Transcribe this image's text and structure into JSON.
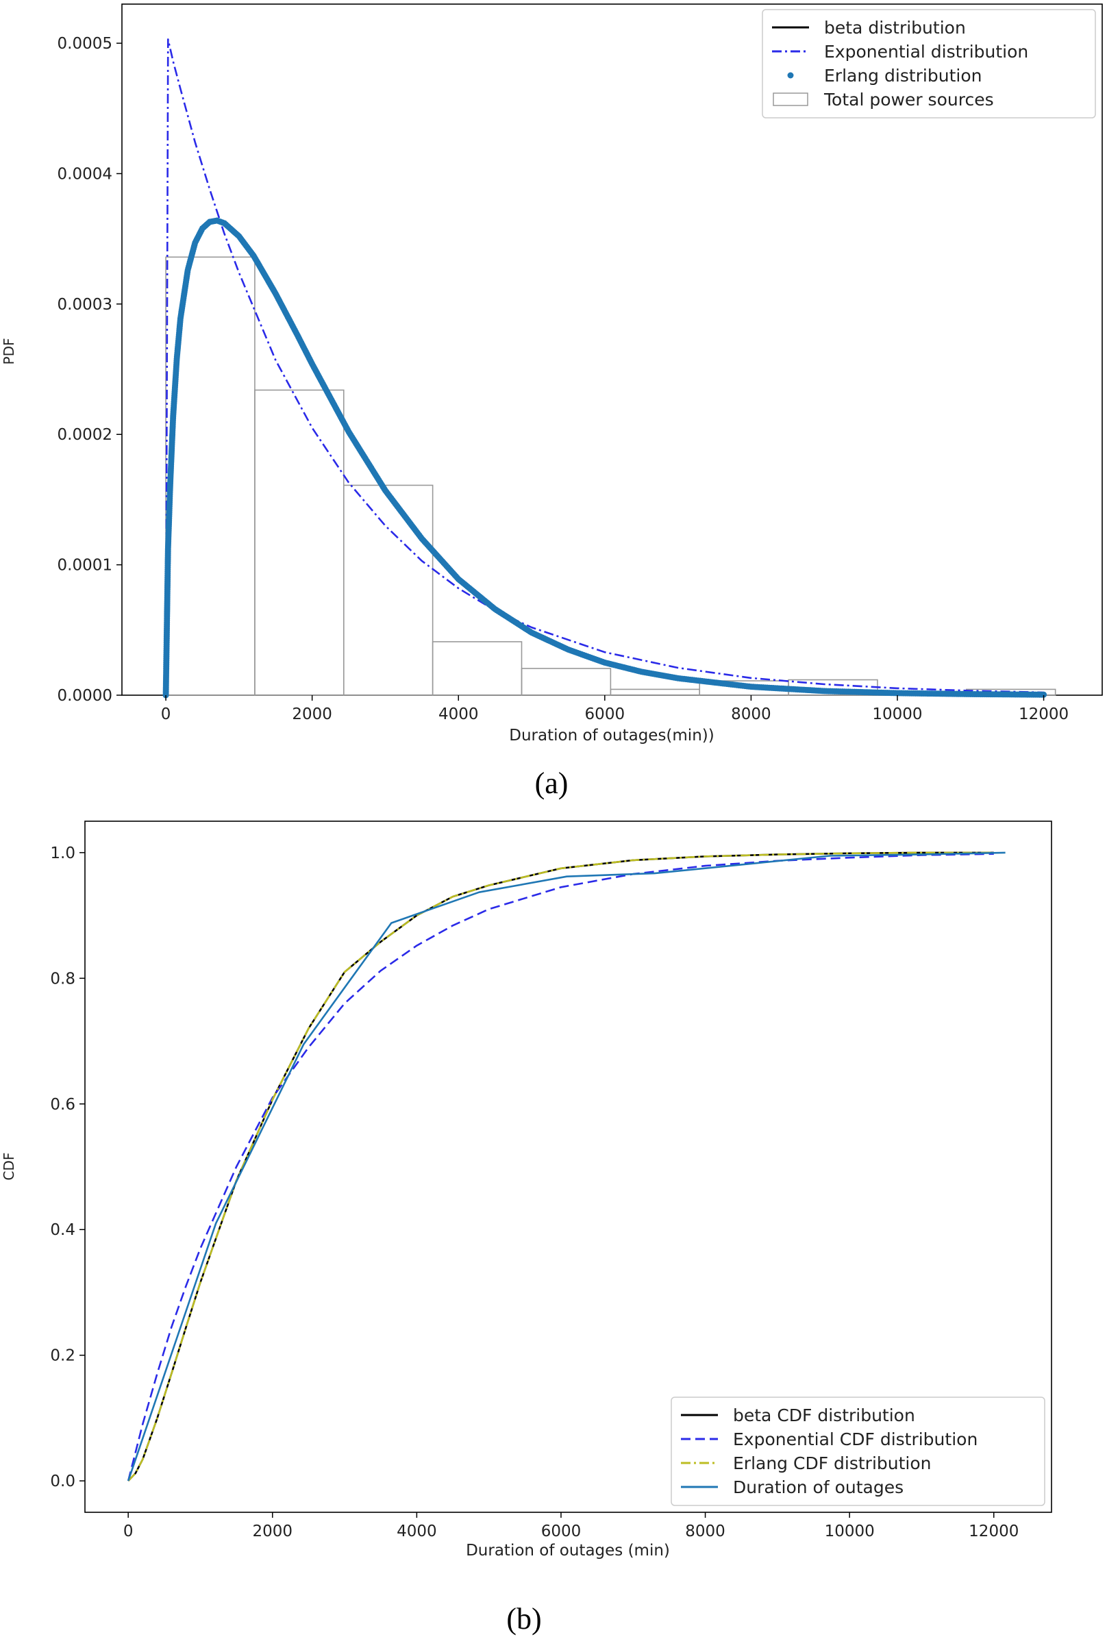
{
  "chart_data": [
    {
      "type": "line",
      "panel_label": "(a)",
      "xlabel": "Duration of outages(min))",
      "ylabel": "PDF",
      "xlim": [
        -600,
        12800
      ],
      "ylim": [
        0,
        0.00053
      ],
      "xticks": [
        0,
        2000,
        4000,
        6000,
        8000,
        10000,
        12000
      ],
      "xtick_labels": [
        "0",
        "2000",
        "4000",
        "6000",
        "8000",
        "10000",
        "12000"
      ],
      "yticks": [
        0,
        0.0001,
        0.0002,
        0.0003,
        0.0004,
        0.0005
      ],
      "ytick_labels": [
        "0.0000",
        "0.0001",
        "0.0002",
        "0.0003",
        "0.0004",
        "0.0005"
      ],
      "grid": false,
      "legend_position": "top-right",
      "histogram": {
        "name": "Total power sources",
        "color": "#999999",
        "bin_edges": [
          0,
          1216,
          2432,
          3648,
          4864,
          6080,
          7296,
          8512,
          9728,
          10944,
          12160
        ],
        "values": [
          0.000336,
          0.000234,
          0.000161,
          4.1e-05,
          2.05e-05,
          4.5e-06,
          1.1e-05,
          1.18e-05,
          2.8e-06,
          4.5e-06
        ]
      },
      "series": [
        {
          "name": "beta distribution",
          "style": "solid",
          "color": "#000000",
          "x": [
            0,
            30,
            60,
            100,
            150,
            200,
            300,
            400,
            500,
            600,
            700,
            800,
            1000,
            1200,
            1500,
            1800,
            2000,
            2500,
            3000,
            3500,
            4000,
            4500,
            5000,
            5500,
            6000,
            6500,
            7000,
            8000,
            9000,
            10000,
            11000,
            12000
          ],
          "y": [
            0,
            0.000112,
            0.000162,
            0.000214,
            0.000258,
            0.000289,
            0.000326,
            0.000347,
            0.000358,
            0.000363,
            0.000364,
            0.000362,
            0.000352,
            0.000337,
            0.000308,
            0.000276,
            0.000254,
            0.000202,
            0.000157,
            0.00012,
            8.9e-05,
            6.6e-05,
            4.8e-05,
            3.5e-05,
            2.5e-05,
            1.8e-05,
            1.3e-05,
            6.5e-06,
            3.2e-06,
            1.6e-06,
            8e-07,
            4e-07
          ]
        },
        {
          "name": "Exponential distribution",
          "style": "dashdot",
          "color": "#2a2ae8",
          "x": [
            0,
            30,
            100,
            200,
            400,
            600,
            800,
            1000,
            1500,
            2000,
            2500,
            3000,
            3500,
            4000,
            4500,
            5000,
            6000,
            7000,
            8000,
            9000,
            10000,
            11000,
            12000
          ],
          "y": [
            0,
            0.000503,
            0.000486,
            0.000465,
            0.000424,
            0.000388,
            0.000354,
            0.000324,
            0.000257,
            0.000205,
            0.000163,
            0.00013,
            0.000103,
            8.2e-05,
            6.5e-05,
            5.2e-05,
            3.3e-05,
            2.1e-05,
            1.32e-05,
            8.4e-06,
            5.3e-06,
            3.4e-06,
            2.1e-06
          ]
        },
        {
          "name": "Erlang distribution",
          "style": "dots",
          "color": "#1f77b4",
          "x": [
            0,
            30,
            60,
            100,
            150,
            200,
            300,
            400,
            500,
            600,
            700,
            800,
            1000,
            1200,
            1500,
            1800,
            2000,
            2500,
            3000,
            3500,
            4000,
            4500,
            5000,
            5500,
            6000,
            6500,
            7000,
            8000,
            9000,
            10000,
            11000,
            12000
          ],
          "y": [
            0,
            0.000112,
            0.000162,
            0.000214,
            0.000258,
            0.000289,
            0.000326,
            0.000347,
            0.000358,
            0.000363,
            0.000364,
            0.000362,
            0.000352,
            0.000337,
            0.000308,
            0.000276,
            0.000254,
            0.000202,
            0.000157,
            0.00012,
            8.9e-05,
            6.6e-05,
            4.8e-05,
            3.5e-05,
            2.5e-05,
            1.8e-05,
            1.3e-05,
            6.5e-06,
            3.2e-06,
            1.6e-06,
            8e-07,
            4e-07
          ]
        }
      ]
    },
    {
      "type": "line",
      "panel_label": "(b)",
      "xlabel": "Duration of outages (min)",
      "ylabel": "CDF",
      "xlim": [
        -600,
        12800
      ],
      "ylim": [
        -0.05,
        1.05
      ],
      "xticks": [
        0,
        2000,
        4000,
        6000,
        8000,
        10000,
        12000
      ],
      "xtick_labels": [
        "0",
        "2000",
        "4000",
        "6000",
        "8000",
        "10000",
        "12000"
      ],
      "yticks": [
        0.0,
        0.2,
        0.4,
        0.6,
        0.8,
        1.0
      ],
      "ytick_labels": [
        "0.0",
        "0.2",
        "0.4",
        "0.6",
        "0.8",
        "1.0"
      ],
      "grid": false,
      "legend_position": "bottom-right",
      "series": [
        {
          "name": "beta CDF distribution",
          "style": "solid",
          "color": "#000000",
          "x": [
            0,
            100,
            200,
            400,
            600,
            800,
            1000,
            1500,
            2000,
            2500,
            3000,
            3500,
            4000,
            4500,
            5000,
            6000,
            7000,
            8000,
            9000,
            10000,
            11000,
            12000
          ],
          "y": [
            0,
            0.012,
            0.034,
            0.099,
            0.171,
            0.244,
            0.316,
            0.478,
            0.607,
            0.72,
            0.81,
            0.858,
            0.9,
            0.93,
            0.948,
            0.975,
            0.988,
            0.994,
            0.997,
            0.999,
            1.0,
            1.0
          ]
        },
        {
          "name": "Exponential CDF distribution",
          "style": "dashed",
          "color": "#2a2ae8",
          "x": [
            0,
            200,
            400,
            600,
            800,
            1000,
            1500,
            2000,
            2500,
            3000,
            3500,
            4000,
            4500,
            5000,
            6000,
            7000,
            8000,
            9000,
            10000,
            11000,
            12000
          ],
          "y": [
            0,
            0.09,
            0.17,
            0.245,
            0.31,
            0.37,
            0.5,
            0.61,
            0.69,
            0.76,
            0.812,
            0.852,
            0.884,
            0.91,
            0.945,
            0.966,
            0.979,
            0.987,
            0.992,
            0.996,
            0.998
          ]
        },
        {
          "name": "Erlang CDF distribution",
          "style": "dashdot",
          "color": "#bcbd22",
          "x": [
            0,
            100,
            200,
            400,
            600,
            800,
            1000,
            1500,
            2000,
            2500,
            3000,
            3500,
            4000,
            4500,
            5000,
            6000,
            7000,
            8000,
            9000,
            10000,
            11000,
            12000
          ],
          "y": [
            0,
            0.012,
            0.034,
            0.099,
            0.171,
            0.244,
            0.316,
            0.478,
            0.607,
            0.72,
            0.81,
            0.858,
            0.9,
            0.93,
            0.948,
            0.975,
            0.988,
            0.994,
            0.997,
            0.999,
            1.0,
            1.0
          ]
        },
        {
          "name": "Duration of outages",
          "style": "solid",
          "color": "#1f77b4",
          "x": [
            0,
            1216,
            2432,
            3648,
            4864,
            6080,
            7296,
            8512,
            9728,
            10944,
            12160
          ],
          "y": [
            0,
            0.41,
            0.695,
            0.888,
            0.937,
            0.962,
            0.967,
            0.981,
            0.995,
            0.997,
            1.0
          ]
        }
      ]
    }
  ]
}
